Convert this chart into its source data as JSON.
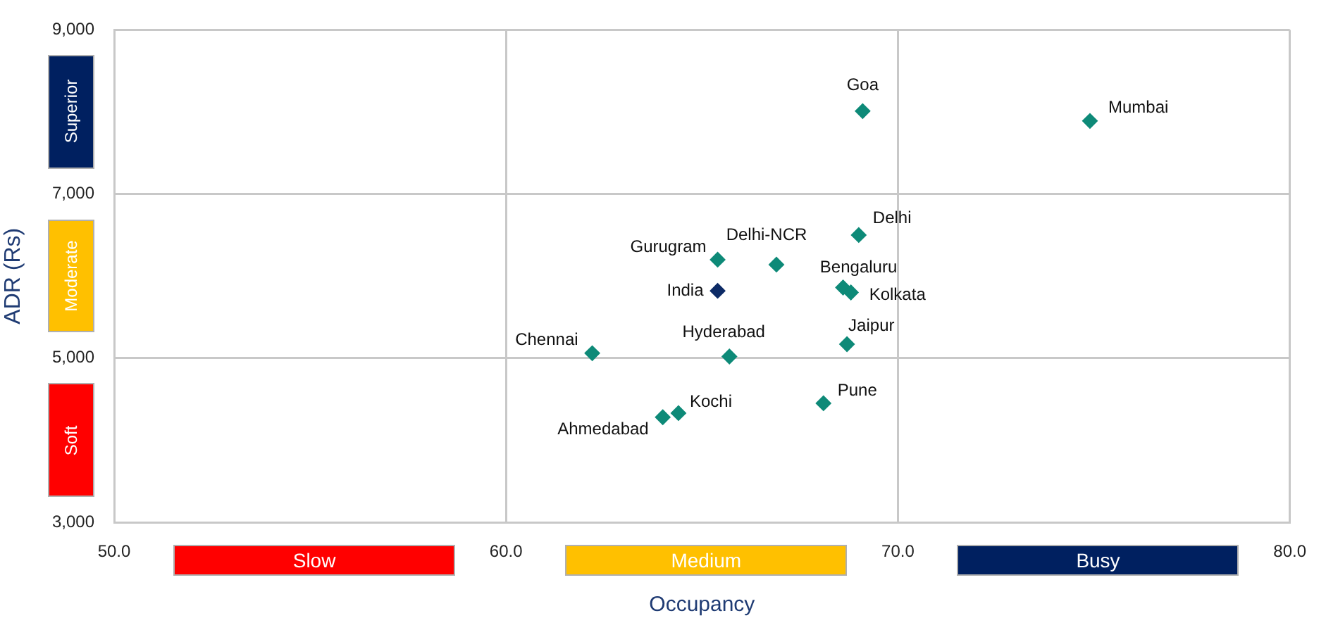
{
  "chart_data": {
    "type": "scatter",
    "xlabel": "Occupancy",
    "ylabel": "ADR (Rs)",
    "x": [
      69.1,
      74.9,
      69.0,
      65.4,
      66.9,
      65.4,
      68.6,
      68.8,
      62.2,
      65.7,
      68.7,
      68.1,
      64.4,
      64.0
    ],
    "values": [
      8010,
      7890,
      6500,
      6200,
      6140,
      5820,
      5860,
      5800,
      5060,
      5020,
      5170,
      4450,
      4330,
      4280
    ],
    "colors": [
      "#0e8a78",
      "#0e8a78",
      "#0e8a78",
      "#0e8a78",
      "#0e8a78",
      "#0d2b66",
      "#0e8a78",
      "#0e8a78",
      "#0e8a78",
      "#0e8a78",
      "#0e8a78",
      "#0e8a78",
      "#0e8a78",
      "#0e8a78"
    ],
    "marker": "diamond",
    "xlim": [
      50,
      80
    ],
    "xticks": [
      {
        "value": 50,
        "label": "50.0"
      },
      {
        "value": 60,
        "label": "60.0"
      },
      {
        "value": 70,
        "label": "70.0"
      },
      {
        "value": 80,
        "label": "80.0"
      }
    ],
    "ylim": [
      3000,
      9000
    ],
    "yticks": [
      {
        "value": 3000,
        "label": "3,000"
      },
      {
        "value": 5000,
        "label": "5,000"
      },
      {
        "value": 7000,
        "label": "7,000"
      },
      {
        "value": 9000,
        "label": "9,000"
      }
    ],
    "grid": true,
    "legend": false,
    "annotations": [
      {
        "text": "Goa",
        "x": 69.1,
        "y": 8010
      },
      {
        "text": "Mumbai",
        "x": 74.9,
        "y": 7890
      },
      {
        "text": "Delhi",
        "x": 69.0,
        "y": 6500
      },
      {
        "text": "Gurugram",
        "x": 65.4,
        "y": 6200
      },
      {
        "text": "Delhi-NCR",
        "x": 66.9,
        "y": 6140
      },
      {
        "text": "India",
        "x": 65.4,
        "y": 5820
      },
      {
        "text": "Bengaluru",
        "x": 68.6,
        "y": 5860
      },
      {
        "text": "Kolkata",
        "x": 68.8,
        "y": 5800
      },
      {
        "text": "Chennai",
        "x": 62.2,
        "y": 5060
      },
      {
        "text": "Hyderabad",
        "x": 65.7,
        "y": 5020
      },
      {
        "text": "Jaipur",
        "x": 68.7,
        "y": 5170
      },
      {
        "text": "Pune",
        "x": 68.1,
        "y": 4450
      },
      {
        "text": "Kochi",
        "x": 64.4,
        "y": 4330
      },
      {
        "text": "Ahmedabad",
        "x": 64.0,
        "y": 4280
      },
      "Superior",
      "Moderate",
      "Soft",
      "Slow",
      "Medium",
      "Busy"
    ]
  }
}
